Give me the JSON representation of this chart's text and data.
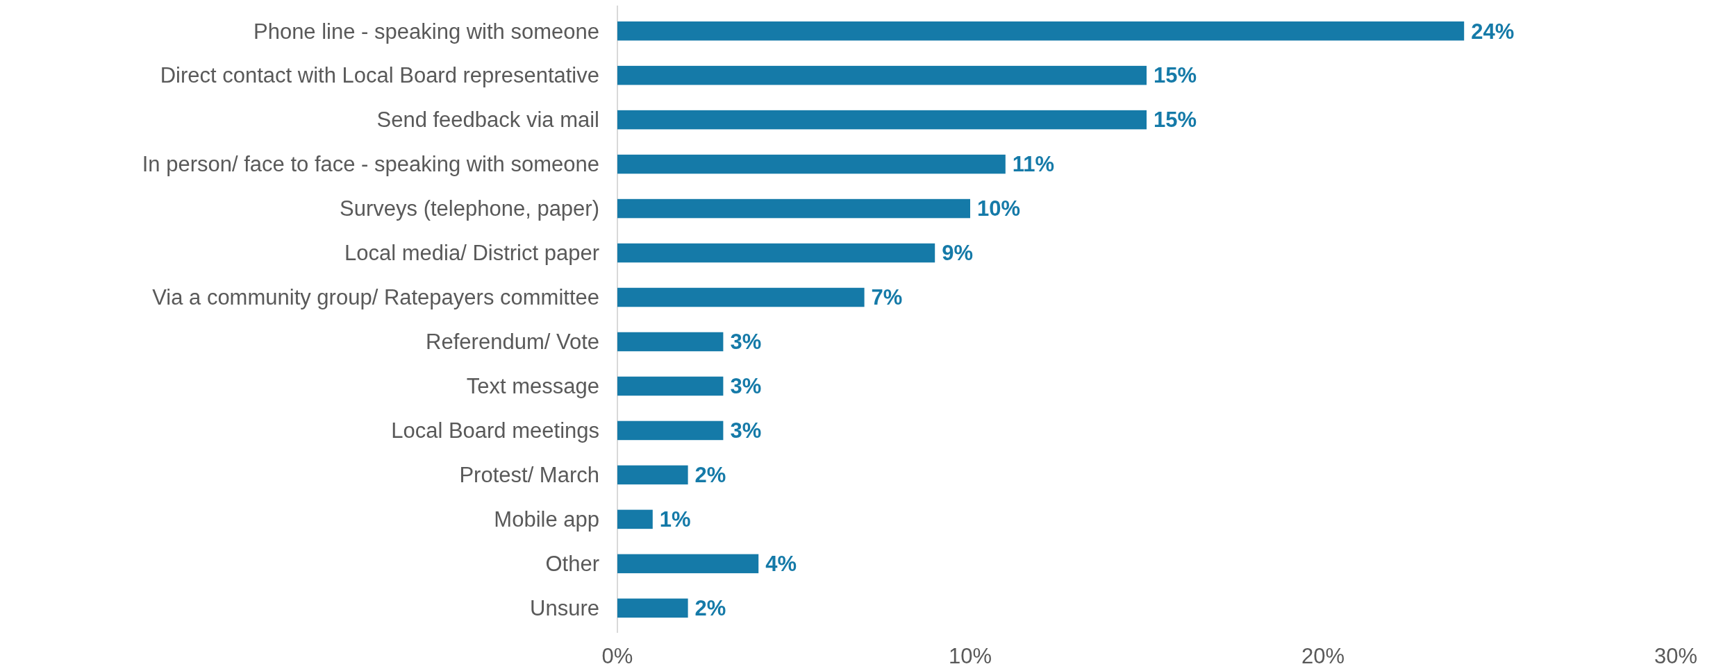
{
  "chart_data": {
    "type": "bar",
    "orientation": "horizontal",
    "categories": [
      "Phone line - speaking with someone",
      "Direct contact with Local Board representative",
      "Send feedback via mail",
      "In person/ face to face - speaking with someone",
      "Surveys (telephone, paper)",
      "Local media/ District paper",
      "Via a community group/ Ratepayers committee",
      "Referendum/ Vote",
      "Text message",
      "Local Board meetings",
      "Protest/ March",
      "Mobile app",
      "Other",
      "Unsure"
    ],
    "values": [
      24,
      15,
      15,
      11,
      10,
      9,
      7,
      3,
      3,
      3,
      2,
      1,
      4,
      2
    ],
    "value_labels": [
      "24%",
      "15%",
      "15%",
      "11%",
      "10%",
      "9%",
      "7%",
      "3%",
      "3%",
      "3%",
      "2%",
      "1%",
      "4%",
      "2%"
    ],
    "color": "#157aa8",
    "xlim": [
      0,
      30
    ],
    "xticks": [
      {
        "value": 0,
        "label": "0%"
      },
      {
        "value": 10,
        "label": "10%"
      },
      {
        "value": 20,
        "label": "20%"
      },
      {
        "value": 30,
        "label": "30%"
      }
    ],
    "grid": false
  }
}
